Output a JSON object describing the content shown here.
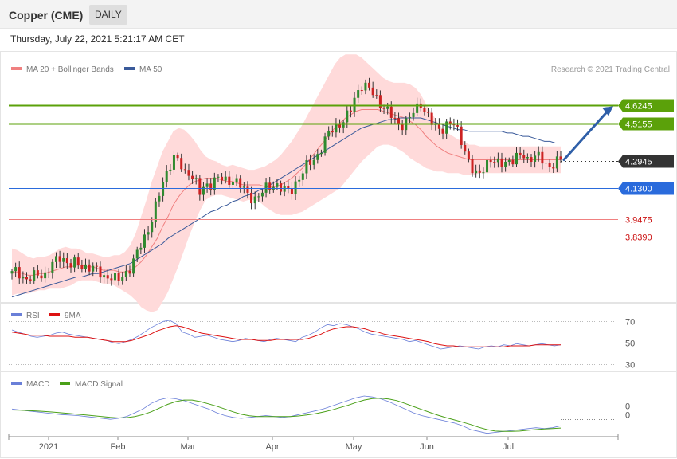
{
  "header": {
    "title": "Copper (CME)",
    "period": "DAILY",
    "datetime": "Thursday, July 22, 2021 5:21:17 AM CET"
  },
  "legend": {
    "bollinger": "MA 20 + Bollinger Bands",
    "ma50": "MA 50",
    "credit": "Research © 2021 Trading Central",
    "rsi": "RSI",
    "rsi_ma": "9MA",
    "macd": "MACD",
    "macd_signal": "MACD Signal"
  },
  "colors": {
    "up": "#2f8a2f",
    "down": "#cc2222",
    "bollinger_fill": "#ffdada",
    "ma20": "#f08080",
    "ma50": "#3a5a9a",
    "resistance": "#5ba10a",
    "support": "#2a6bdc",
    "minor_support": "#f08080",
    "last_price": "#333333",
    "rsi": "#6a7fd8",
    "rsi_ma": "#dd1111",
    "macd": "#6a7fd8",
    "macd_signal": "#4aa018",
    "arrow": "#2f5fa8"
  },
  "chart_data": [
    {
      "type": "candlestick",
      "title": "Copper (CME)",
      "period": "DAILY",
      "x_labels": [
        "2021",
        "Feb",
        "Mar",
        "Apr",
        "May",
        "Jun",
        "Jul"
      ],
      "ylim": [
        3.45,
        4.95
      ],
      "levels": [
        {
          "name": "resistance-2",
          "value": 4.6245,
          "label": "4.6245",
          "kind": "resistance"
        },
        {
          "name": "resistance-1",
          "value": 4.5155,
          "label": "4.5155",
          "kind": "resistance"
        },
        {
          "name": "last-price",
          "value": 4.2945,
          "label": "4.2945",
          "kind": "last"
        },
        {
          "name": "support-1",
          "value": 4.13,
          "label": "4.1300",
          "kind": "support"
        },
        {
          "name": "support-2",
          "value": 3.9475,
          "label": "3.9475",
          "kind": "minor"
        },
        {
          "name": "support-3",
          "value": 3.839,
          "label": "3.8390",
          "kind": "minor"
        }
      ],
      "close_path": [
        3.62,
        3.64,
        3.6,
        3.58,
        3.6,
        3.62,
        3.61,
        3.65,
        3.69,
        3.72,
        3.7,
        3.67,
        3.68,
        3.66,
        3.67,
        3.65,
        3.63,
        3.6,
        3.61,
        3.59,
        3.58,
        3.62,
        3.66,
        3.72,
        3.79,
        3.86,
        3.95,
        4.05,
        4.15,
        4.25,
        4.32,
        4.29,
        4.21,
        4.23,
        4.19,
        4.09,
        4.14,
        4.16,
        4.2,
        4.18,
        4.16,
        4.19,
        4.17,
        4.12,
        4.08,
        4.07,
        4.09,
        4.12,
        4.14,
        4.16,
        4.13,
        4.11,
        4.12,
        4.18,
        4.22,
        4.27,
        4.3,
        4.34,
        4.4,
        4.46,
        4.5,
        4.52,
        4.54,
        4.6,
        4.7,
        4.75,
        4.73,
        4.7,
        4.66,
        4.62,
        4.58,
        4.54,
        4.51,
        4.52,
        4.55,
        4.6,
        4.64,
        4.58,
        4.52,
        4.48,
        4.49,
        4.52,
        4.51,
        4.46,
        4.38,
        4.28,
        4.2,
        4.22,
        4.28,
        4.3,
        4.27,
        4.28,
        4.3,
        4.29,
        4.31,
        4.34,
        4.3,
        4.32,
        4.31,
        4.29,
        4.26,
        4.28,
        4.2945
      ],
      "ma20_path": [
        3.63,
        3.63,
        3.62,
        3.61,
        3.61,
        3.62,
        3.62,
        3.63,
        3.64,
        3.65,
        3.66,
        3.66,
        3.67,
        3.67,
        3.66,
        3.66,
        3.65,
        3.64,
        3.64,
        3.64,
        3.63,
        3.63,
        3.64,
        3.66,
        3.69,
        3.73,
        3.78,
        3.83,
        3.9,
        3.96,
        4.03,
        4.08,
        4.12,
        4.15,
        4.17,
        4.18,
        4.19,
        4.19,
        4.19,
        4.18,
        4.17,
        4.17,
        4.16,
        4.15,
        4.15,
        4.15,
        4.15,
        4.14,
        4.14,
        4.14,
        4.15,
        4.17,
        4.19,
        4.22,
        4.25,
        4.29,
        4.33,
        4.37,
        4.41,
        4.45,
        4.49,
        4.52,
        4.55,
        4.57,
        4.59,
        4.6,
        4.6,
        4.6,
        4.6,
        4.59,
        4.58,
        4.57,
        4.56,
        4.55,
        4.53,
        4.51,
        4.48,
        4.44,
        4.41,
        4.38,
        4.36,
        4.34,
        4.33,
        4.32,
        4.31,
        4.3,
        4.3,
        4.3,
        4.3,
        4.3,
        4.3,
        4.3,
        4.3,
        4.3,
        4.3,
        4.3,
        4.3,
        4.3,
        4.3,
        4.3,
        4.3,
        4.3,
        4.3
      ],
      "ma50_path": [
        3.48,
        3.49,
        3.5,
        3.51,
        3.52,
        3.53,
        3.54,
        3.55,
        3.56,
        3.57,
        3.58,
        3.59,
        3.6,
        3.6,
        3.61,
        3.62,
        3.62,
        3.63,
        3.64,
        3.65,
        3.66,
        3.67,
        3.68,
        3.7,
        3.72,
        3.74,
        3.76,
        3.78,
        3.8,
        3.83,
        3.85,
        3.87,
        3.89,
        3.91,
        3.93,
        3.95,
        3.97,
        3.99,
        4.0,
        4.02,
        4.03,
        4.05,
        4.06,
        4.08,
        4.09,
        4.1,
        4.12,
        4.13,
        4.15,
        4.17,
        4.19,
        4.21,
        4.23,
        4.25,
        4.27,
        4.29,
        4.31,
        4.33,
        4.35,
        4.37,
        4.39,
        4.41,
        4.43,
        4.45,
        4.47,
        4.49,
        4.5,
        4.51,
        4.52,
        4.53,
        4.54,
        4.54,
        4.55,
        4.55,
        4.55,
        4.55,
        4.55,
        4.54,
        4.53,
        4.52,
        4.51,
        4.5,
        4.49,
        4.48,
        4.48,
        4.47,
        4.47,
        4.47,
        4.47,
        4.47,
        4.47,
        4.47,
        4.46,
        4.46,
        4.45,
        4.44,
        4.44,
        4.43,
        4.42,
        4.41,
        4.41,
        4.4,
        4.4
      ],
      "band_width_path": [
        0.14,
        0.13,
        0.12,
        0.11,
        0.1,
        0.1,
        0.1,
        0.1,
        0.11,
        0.12,
        0.12,
        0.11,
        0.1,
        0.09,
        0.08,
        0.08,
        0.08,
        0.08,
        0.08,
        0.09,
        0.1,
        0.12,
        0.15,
        0.2,
        0.27,
        0.33,
        0.39,
        0.43,
        0.45,
        0.45,
        0.44,
        0.41,
        0.36,
        0.3,
        0.24,
        0.18,
        0.13,
        0.11,
        0.1,
        0.09,
        0.09,
        0.1,
        0.1,
        0.1,
        0.09,
        0.09,
        0.1,
        0.12,
        0.14,
        0.16,
        0.18,
        0.2,
        0.22,
        0.24,
        0.26,
        0.28,
        0.3,
        0.32,
        0.34,
        0.36,
        0.38,
        0.39,
        0.38,
        0.36,
        0.34,
        0.31,
        0.28,
        0.25,
        0.22,
        0.2,
        0.19,
        0.19,
        0.2,
        0.21,
        0.22,
        0.22,
        0.21,
        0.19,
        0.17,
        0.15,
        0.13,
        0.12,
        0.11,
        0.1,
        0.1,
        0.09,
        0.09,
        0.08,
        0.08,
        0.08,
        0.08,
        0.08,
        0.08,
        0.08,
        0.08,
        0.08,
        0.08,
        0.08,
        0.08,
        0.08,
        0.08,
        0.08,
        0.08
      ],
      "forecast_arrow": {
        "from": 4.3,
        "to": 4.62
      }
    },
    {
      "type": "line",
      "name": "RSI panel",
      "ylim": [
        20,
        80
      ],
      "ticks": [
        {
          "value": 70,
          "label": "70"
        },
        {
          "value": 50,
          "label": "50"
        },
        {
          "value": 30,
          "label": "30"
        }
      ],
      "series": [
        {
          "name": "RSI",
          "values": [
            62,
            60,
            58,
            56,
            55,
            56,
            57,
            59,
            60,
            58,
            57,
            56,
            55,
            54,
            53,
            52,
            50,
            49,
            51,
            53,
            56,
            60,
            64,
            67,
            70,
            71,
            68,
            60,
            58,
            55,
            56,
            57,
            55,
            53,
            52,
            51,
            52,
            54,
            53,
            52,
            51,
            53,
            54,
            53,
            52,
            51,
            55,
            57,
            60,
            64,
            67,
            66,
            68,
            67,
            65,
            63,
            60,
            58,
            57,
            56,
            55,
            54,
            53,
            51,
            52,
            50,
            48,
            46,
            44,
            45,
            46,
            47,
            46,
            45,
            44,
            46,
            47,
            46,
            48,
            47,
            49,
            48,
            47,
            48,
            49,
            48,
            47,
            48
          ]
        },
        {
          "name": "9MA",
          "values": [
            60,
            59,
            58,
            57,
            57,
            57,
            56,
            56,
            56,
            56,
            55,
            55,
            55,
            54,
            53,
            52,
            51,
            51,
            51,
            52,
            54,
            56,
            58,
            61,
            63,
            65,
            66,
            65,
            63,
            61,
            59,
            58,
            57,
            56,
            55,
            54,
            53,
            53,
            53,
            52,
            52,
            52,
            53,
            53,
            53,
            53,
            53,
            54,
            56,
            58,
            61,
            63,
            64,
            65,
            65,
            64,
            63,
            61,
            60,
            58,
            57,
            56,
            55,
            54,
            53,
            52,
            51,
            49,
            48,
            47,
            47,
            46,
            46,
            46,
            46,
            46,
            46,
            46,
            46,
            47,
            47,
            47,
            47,
            48,
            48,
            48,
            48,
            48
          ]
        }
      ]
    },
    {
      "type": "line",
      "name": "MACD panel",
      "ylim": [
        -0.12,
        0.12
      ],
      "ticks": [
        {
          "value": 0.04,
          "label": "0"
        },
        {
          "value": -0.01,
          "label": "0"
        }
      ],
      "series": [
        {
          "name": "MACD",
          "values": [
            0.02,
            0.015,
            0.01,
            0.005,
            0.0,
            -0.005,
            -0.01,
            -0.012,
            -0.015,
            -0.02,
            -0.025,
            -0.03,
            -0.035,
            -0.03,
            -0.02,
            0.0,
            0.02,
            0.05,
            0.07,
            0.08,
            0.075,
            0.065,
            0.05,
            0.035,
            0.02,
            0.0,
            -0.015,
            -0.025,
            -0.03,
            -0.025,
            -0.02,
            -0.015,
            -0.02,
            -0.025,
            -0.02,
            -0.01,
            0.0,
            0.01,
            0.02,
            0.035,
            0.05,
            0.065,
            0.08,
            0.09,
            0.085,
            0.075,
            0.06,
            0.04,
            0.02,
            0.0,
            -0.015,
            -0.025,
            -0.035,
            -0.045,
            -0.055,
            -0.07,
            -0.09,
            -0.1,
            -0.11,
            -0.105,
            -0.1,
            -0.095,
            -0.09,
            -0.085,
            -0.08,
            -0.085,
            -0.08,
            -0.07
          ]
        },
        {
          "name": "MACD Signal",
          "values": [
            0.015,
            0.014,
            0.012,
            0.01,
            0.007,
            0.004,
            0.0,
            -0.004,
            -0.008,
            -0.012,
            -0.016,
            -0.02,
            -0.025,
            -0.028,
            -0.026,
            -0.02,
            -0.01,
            0.005,
            0.025,
            0.045,
            0.06,
            0.068,
            0.068,
            0.06,
            0.048,
            0.035,
            0.02,
            0.005,
            -0.008,
            -0.016,
            -0.02,
            -0.02,
            -0.02,
            -0.02,
            -0.02,
            -0.017,
            -0.012,
            -0.005,
            0.004,
            0.014,
            0.027,
            0.04,
            0.055,
            0.068,
            0.076,
            0.078,
            0.074,
            0.065,
            0.05,
            0.034,
            0.018,
            0.002,
            -0.013,
            -0.026,
            -0.038,
            -0.05,
            -0.063,
            -0.078,
            -0.09,
            -0.098,
            -0.1,
            -0.1,
            -0.098,
            -0.094,
            -0.09,
            -0.087,
            -0.085,
            -0.082
          ]
        }
      ]
    }
  ]
}
